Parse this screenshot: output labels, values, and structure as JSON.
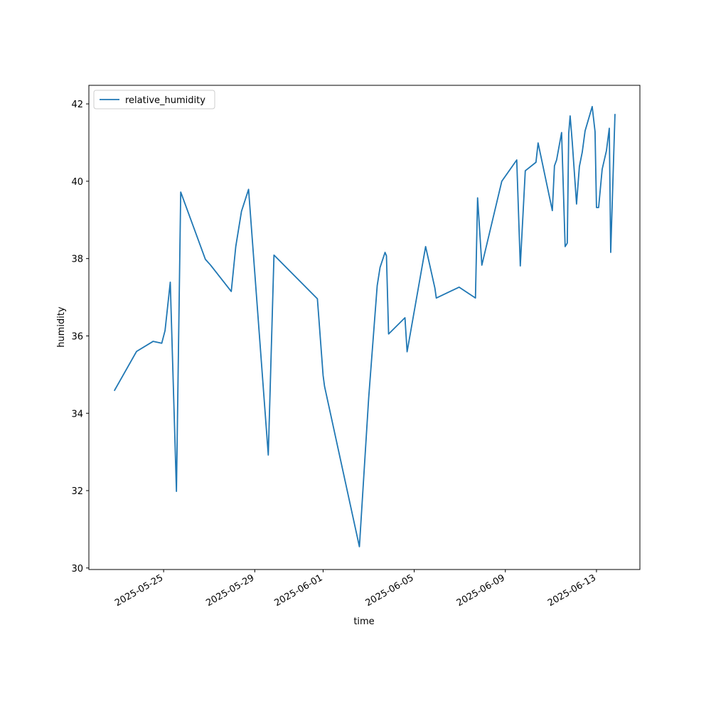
{
  "chart_data": {
    "type": "line",
    "xlabel": "time",
    "ylabel": "humidity",
    "x": [
      "2025-05-22T20:00",
      "2025-05-23T19:30",
      "2025-05-24T13:00",
      "2025-05-24T22:00",
      "2025-05-25T01:30",
      "2025-05-25T07:00",
      "2025-05-25T13:30",
      "2025-05-25T18:00",
      "2025-05-26T20:00",
      "2025-05-27T01:30",
      "2025-05-27T23:15",
      "2025-05-28T04:00",
      "2025-05-28T10:00",
      "2025-05-28T17:30",
      "2025-05-29T14:15",
      "2025-05-29T20:15",
      "2025-05-31T18:00",
      "2025-06-01T00:00",
      "2025-06-01T01:30",
      "2025-06-02T14:15",
      "2025-06-03T00:00",
      "2025-06-03T09:00",
      "2025-06-03T12:00",
      "2025-06-03T17:15",
      "2025-06-03T18:45",
      "2025-06-03T21:00",
      "2025-06-04T14:15",
      "2025-06-04T16:30",
      "2025-06-05T12:00",
      "2025-06-05T21:45",
      "2025-06-05T23:15",
      "2025-06-06T23:15",
      "2025-06-07T16:30",
      "2025-06-07T18:45",
      "2025-06-07T23:15",
      "2025-06-08T20:15",
      "2025-06-09T12:00",
      "2025-06-09T15:45",
      "2025-06-09T21:00",
      "2025-06-10T08:15",
      "2025-06-10T10:30",
      "2025-06-11T01:30",
      "2025-06-11T03:45",
      "2025-06-11T06:00",
      "2025-06-11T11:15",
      "2025-06-11T15:00",
      "2025-06-11T17:15",
      "2025-06-11T18:45",
      "2025-06-11T20:15",
      "2025-06-11T22:30",
      "2025-06-12T03:00",
      "2025-06-12T06:00",
      "2025-06-12T09:00",
      "2025-06-12T12:00",
      "2025-06-12T19:30",
      "2025-06-12T22:30",
      "2025-06-13T00:00",
      "2025-06-13T02:15",
      "2025-06-13T06:00",
      "2025-06-13T10:30",
      "2025-06-13T13:30",
      "2025-06-13T15:00",
      "2025-06-13T19:30"
    ],
    "series": [
      {
        "name": "relative_humidity",
        "color": "#1f77b4",
        "values": [
          34.58,
          35.6,
          35.86,
          35.81,
          36.14,
          37.39,
          31.98,
          39.72,
          37.98,
          37.83,
          37.15,
          38.31,
          39.22,
          39.79,
          32.92,
          38.09,
          36.96,
          34.98,
          34.7,
          30.55,
          34.39,
          37.3,
          37.77,
          38.16,
          38.07,
          36.05,
          36.47,
          35.59,
          38.31,
          37.24,
          36.98,
          37.26,
          36.98,
          39.57,
          37.83,
          40.0,
          40.55,
          37.81,
          40.27,
          40.49,
          40.99,
          39.24,
          40.4,
          40.55,
          41.26,
          38.31,
          38.4,
          41.23,
          41.69,
          41.01,
          39.41,
          40.38,
          40.75,
          41.3,
          41.93,
          41.28,
          39.32,
          39.32,
          40.31,
          40.79,
          41.37,
          38.16,
          41.74
        ]
      }
    ],
    "xlim": [
      "2025-05-21T17:15",
      "2025-06-14T21:45"
    ],
    "xticks": [
      "2025-05-25",
      "2025-05-29",
      "2025-06-01",
      "2025-06-05",
      "2025-06-09",
      "2025-06-13"
    ],
    "ylim": [
      29.96,
      42.48
    ],
    "yticks": [
      30,
      32,
      34,
      36,
      38,
      40,
      42
    ],
    "legend": "upper left"
  }
}
